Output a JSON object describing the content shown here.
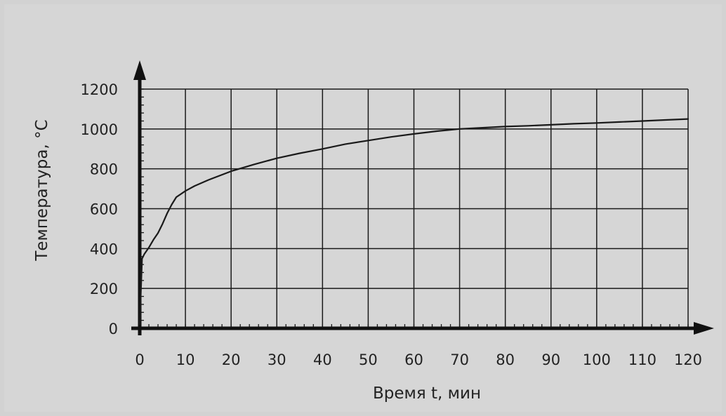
{
  "chart_data": {
    "type": "line",
    "title": "",
    "xlabel": "Время t, мин",
    "ylabel": "Температура, °C",
    "xlim": [
      0,
      120
    ],
    "ylim": [
      0,
      1200
    ],
    "x_ticks": [
      "0",
      "10",
      "20",
      "30",
      "40",
      "50",
      "60",
      "70",
      "80",
      "90",
      "100",
      "110",
      "120"
    ],
    "y_ticks": [
      "0",
      "200",
      "400",
      "600",
      "800",
      "1000",
      "1200"
    ],
    "grid": true,
    "legend": "none",
    "series": [
      {
        "line_color": "#1a1a1a",
        "x": [
          0,
          0.5,
          1,
          2,
          3,
          4,
          5,
          6,
          7,
          8,
          10,
          12,
          15,
          20,
          25,
          30,
          35,
          40,
          45,
          50,
          55,
          60,
          65,
          70,
          75,
          80,
          85,
          90,
          95,
          100,
          105,
          110,
          115,
          120
        ],
        "y": [
          20,
          349,
          372,
          405,
          444,
          478,
          524,
          577,
          621,
          658,
          689,
          714,
          744,
          788,
          822,
          853,
          878,
          900,
          924,
          942,
          960,
          975,
          989,
          1000,
          1006,
          1012,
          1016,
          1021,
          1026,
          1030,
          1035,
          1040,
          1045,
          1050
        ]
      }
    ]
  }
}
